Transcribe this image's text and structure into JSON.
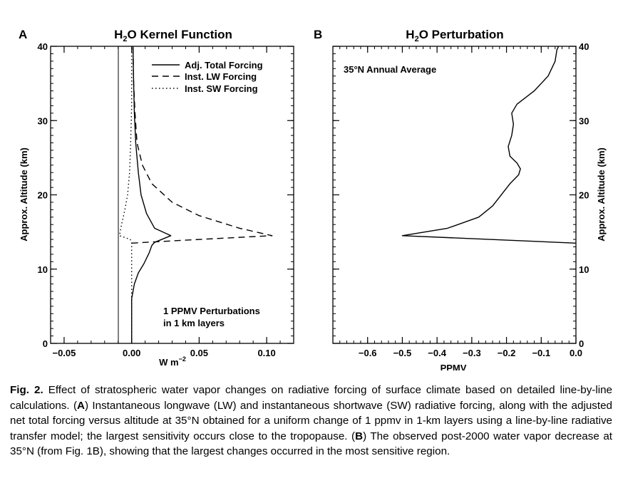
{
  "chart_data": [
    {
      "panel": "A",
      "type": "line",
      "title_main": "H",
      "title_sub": "2",
      "title_rest": "O Kernel Function",
      "xlabel_main": "W m",
      "xlabel_sup": "−2",
      "ylabel": "Approx. Altitude (km)",
      "xlim": [
        -0.06,
        0.12
      ],
      "ylim": [
        0,
        40
      ],
      "xticks": [
        -0.05,
        0.0,
        0.05,
        0.1
      ],
      "xtick_labels": [
        "−0.05",
        "0.00",
        "0.05",
        "0.10"
      ],
      "yticks": [
        0,
        10,
        20,
        30,
        40
      ],
      "ytick_labels": [
        "0",
        "10",
        "20",
        "30",
        "40"
      ],
      "annotation_lines": [
        "1 PPMV Perturbations",
        "in 1 km layers"
      ],
      "series": [
        {
          "name": "Adj. Total Forcing",
          "style": "solid",
          "points": [
            [
              0.0,
              0
            ],
            [
              0.0,
              6
            ],
            [
              0.002,
              8
            ],
            [
              0.005,
              9.5
            ],
            [
              0.009,
              10.7
            ],
            [
              0.013,
              12.2
            ],
            [
              0.015,
              13.2
            ],
            [
              0.017,
              13.6
            ],
            [
              0.029,
              14.5
            ],
            [
              0.017,
              15.5
            ],
            [
              0.011,
              17.5
            ],
            [
              0.007,
              20
            ],
            [
              0.005,
              23
            ],
            [
              0.003,
              27
            ],
            [
              0.002,
              31
            ],
            [
              0.0015,
              35
            ],
            [
              0.001,
              40
            ]
          ]
        },
        {
          "name": "Inst. LW Forcing",
          "style": "dashed",
          "points": [
            [
              0.0,
              13.5
            ],
            [
              0.04,
              13.9
            ],
            [
              0.104,
              14.5
            ],
            [
              0.08,
              15.5
            ],
            [
              0.05,
              17.2
            ],
            [
              0.03,
              19
            ],
            [
              0.015,
              21.5
            ],
            [
              0.008,
              24
            ],
            [
              0.004,
              27
            ],
            [
              0.0025,
              31
            ],
            [
              0.0015,
              35
            ],
            [
              0.001,
              40
            ]
          ]
        },
        {
          "name": "Inst. SW Forcing",
          "style": "dotted",
          "points": [
            [
              0.0,
              0
            ],
            [
              0.0,
              13.5
            ],
            [
              -0.001,
              14.0
            ],
            [
              -0.009,
              14.5
            ],
            [
              -0.0075,
              16
            ],
            [
              -0.005,
              18
            ],
            [
              -0.003,
              20
            ],
            [
              -0.0015,
              23
            ],
            [
              -0.0007,
              27
            ],
            [
              0.0,
              32
            ],
            [
              0.0,
              40
            ]
          ]
        }
      ]
    },
    {
      "panel": "B",
      "type": "line",
      "title_main": "H",
      "title_sub": "2",
      "title_rest": "O Perturbation",
      "xlabel": "PPMV",
      "ylabel": "Approx. Altitude (km)",
      "xlim": [
        -0.7,
        0.0
      ],
      "ylim": [
        0,
        40
      ],
      "xticks": [
        -0.6,
        -0.5,
        -0.4,
        -0.3,
        -0.2,
        -0.1,
        0.0
      ],
      "xtick_labels": [
        "−0.6",
        "−0.5",
        "−0.4",
        "−0.3",
        "−0.2",
        "−0.1",
        "0.0"
      ],
      "yticks": [
        0,
        10,
        20,
        30,
        40
      ],
      "ytick_labels": [
        "0",
        "10",
        "20",
        "30",
        "40"
      ],
      "annotation": "35°N Annual Average",
      "series": [
        {
          "name": "",
          "style": "solid",
          "points": [
            [
              0.0,
              13.5
            ],
            [
              -0.5,
              14.5
            ],
            [
              -0.37,
              15.5
            ],
            [
              -0.28,
              17
            ],
            [
              -0.24,
              18.5
            ],
            [
              -0.19,
              21.5
            ],
            [
              -0.165,
              22.7
            ],
            [
              -0.16,
              23.5
            ],
            [
              -0.17,
              24.3
            ],
            [
              -0.19,
              25.2
            ],
            [
              -0.195,
              26.5
            ],
            [
              -0.185,
              28
            ],
            [
              -0.18,
              29.5
            ],
            [
              -0.185,
              31
            ],
            [
              -0.17,
              32.2
            ],
            [
              -0.12,
              34
            ],
            [
              -0.08,
              36
            ],
            [
              -0.06,
              38
            ],
            [
              -0.055,
              39.5
            ],
            [
              -0.05,
              40
            ]
          ]
        }
      ]
    }
  ],
  "caption": {
    "label": "Fig. 2.",
    "parts": [
      " Effect of stratospheric water vapor changes on radiative forcing of surface climate based on detailed line-by-line calculations. (",
      "A",
      ") Instantaneous longwave (LW) and instantaneous shortwave (SW) radiative forcing, along with the adjusted net total forcing versus altitude at 35°N obtained for a uniform change of 1 ppmv in 1-km layers using a line-by-line radiative transfer model; the largest sensitivity occurs close to the tropopause. (",
      "B",
      ") The observed post-2000 water vapor decrease at 35°N (from Fig. 1B), showing that the largest changes occurred in the most sensitive region."
    ]
  }
}
